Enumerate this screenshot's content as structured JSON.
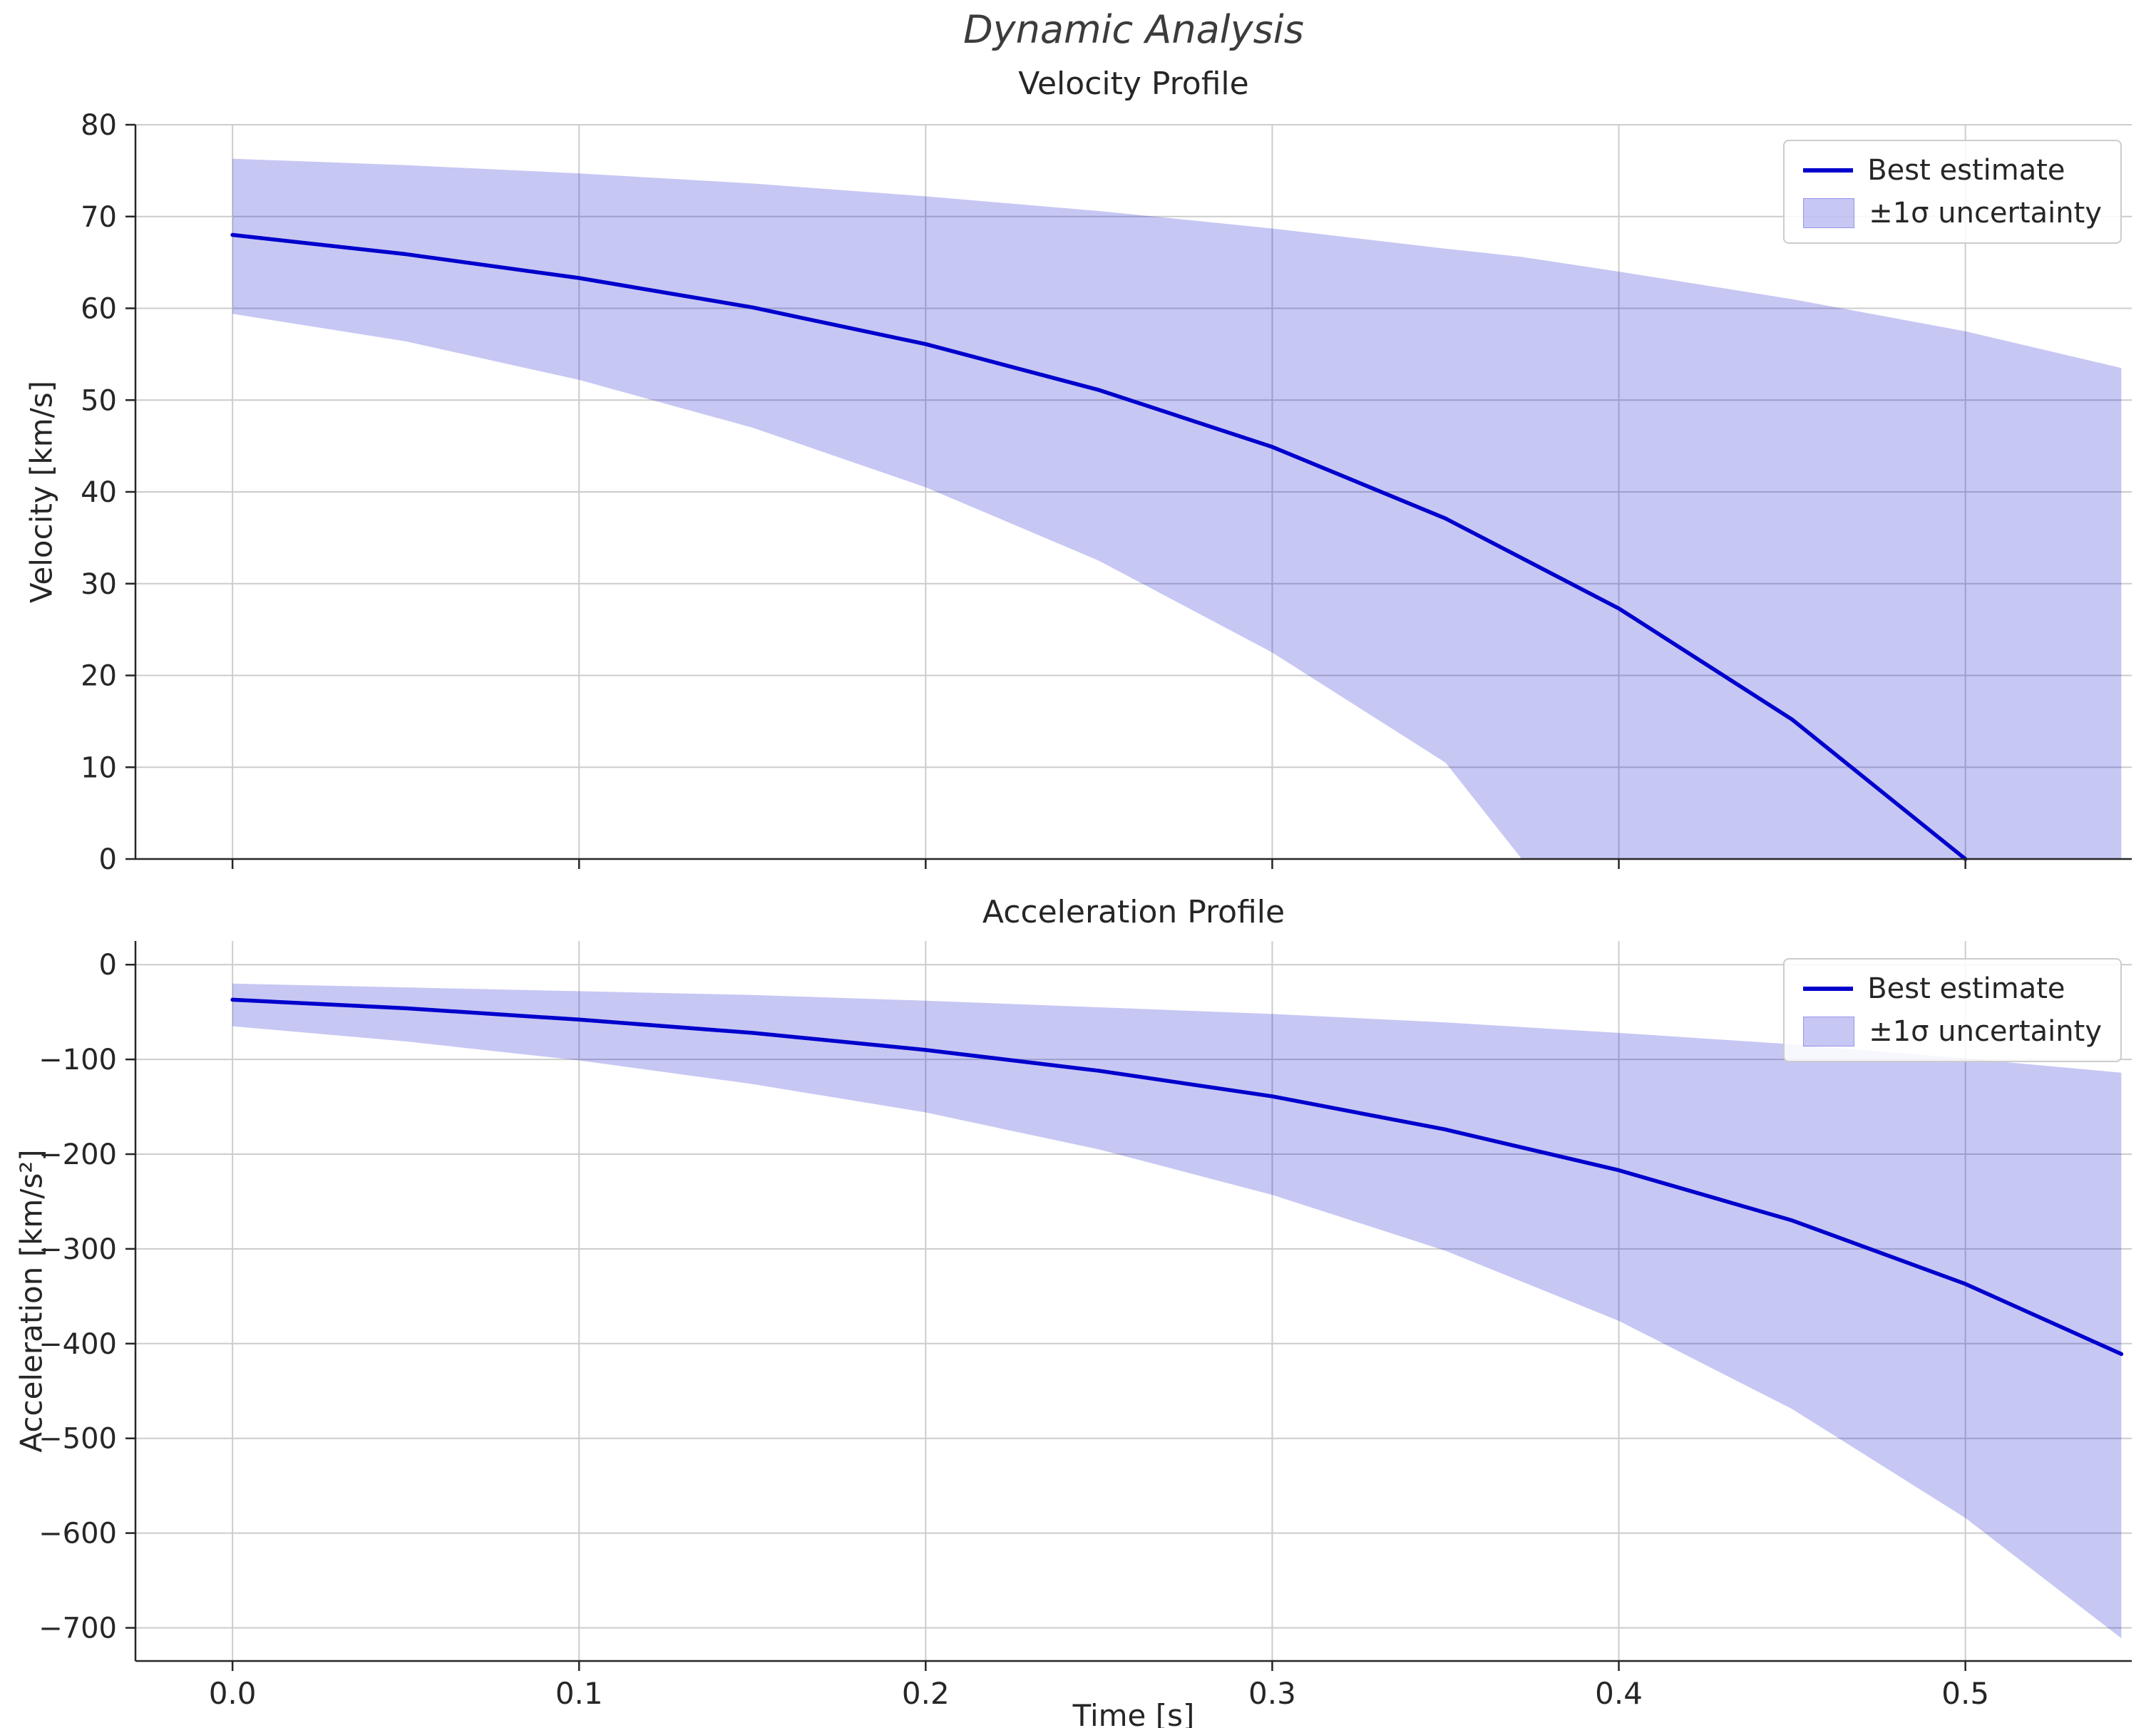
{
  "figure": {
    "title": "Dynamic Analysis"
  },
  "chart_data": [
    {
      "type": "line",
      "title": "Velocity Profile",
      "xlabel": "",
      "ylabel": "Velocity [km/s]",
      "xlim": [
        -0.028,
        0.548
      ],
      "ylim": [
        0,
        80
      ],
      "grid": true,
      "legend_position": "upper right",
      "xticks": {
        "values": [
          0.0,
          0.1,
          0.2,
          0.3,
          0.4,
          0.5
        ],
        "labels": [
          "0.0",
          "0.1",
          "0.2",
          "0.3",
          "0.4",
          "0.5"
        ],
        "show_labels": false
      },
      "yticks": {
        "values": [
          0,
          10,
          20,
          30,
          40,
          50,
          60,
          70,
          80
        ],
        "labels": [
          "0",
          "10",
          "20",
          "30",
          "40",
          "50",
          "60",
          "70",
          "80"
        ]
      },
      "series": [
        {
          "name": "Best estimate",
          "color": "#0000CD",
          "x": [
            0,
            0.05,
            0.1,
            0.15,
            0.2,
            0.25,
            0.3,
            0.35,
            0.4,
            0.45,
            0.5
          ],
          "y": [
            68.0,
            65.9,
            63.3,
            60.1,
            56.1,
            51.1,
            44.9,
            37.1,
            27.3,
            15.2,
            0.0
          ]
        }
      ],
      "band": {
        "name": "±1σ uncertainty",
        "color": "#0000CD",
        "opacity": 0.22,
        "x": [
          0,
          0.05,
          0.1,
          0.15,
          0.2,
          0.25,
          0.3,
          0.35,
          0.372,
          0.4,
          0.45,
          0.5,
          0.545
        ],
        "upper": [
          76.3,
          75.6,
          74.7,
          73.6,
          72.2,
          70.6,
          68.7,
          66.5,
          65.6,
          64.0,
          61.0,
          57.5,
          53.5
        ],
        "lower": [
          59.4,
          56.4,
          52.2,
          47.0,
          40.5,
          32.5,
          22.5,
          10.5,
          0,
          0,
          0,
          0,
          0
        ]
      }
    },
    {
      "type": "line",
      "title": "Acceleration Profile",
      "xlabel": "Time [s]",
      "ylabel": "Acceleration [km/s²]",
      "xlim": [
        -0.028,
        0.548
      ],
      "ylim": [
        -735,
        25
      ],
      "grid": true,
      "legend_position": "upper right",
      "xticks": {
        "values": [
          0.0,
          0.1,
          0.2,
          0.3,
          0.4,
          0.5
        ],
        "labels": [
          "0.0",
          "0.1",
          "0.2",
          "0.3",
          "0.4",
          "0.5"
        ],
        "show_labels": true
      },
      "yticks": {
        "values": [
          0,
          -100,
          -200,
          -300,
          -400,
          -500,
          -600,
          -700
        ],
        "labels": [
          "0",
          "−100",
          "−200",
          "−300",
          "−400",
          "−500",
          "−600",
          "−700"
        ]
      },
      "series": [
        {
          "name": "Best estimate",
          "color": "#0000CD",
          "x": [
            0,
            0.05,
            0.1,
            0.15,
            0.2,
            0.25,
            0.3,
            0.35,
            0.4,
            0.45,
            0.5,
            0.545
          ],
          "y": [
            -37,
            -46,
            -58,
            -72,
            -90,
            -112,
            -139,
            -174,
            -217,
            -270,
            -337,
            -411
          ]
        }
      ],
      "band": {
        "name": "±1σ uncertainty",
        "color": "#0000CD",
        "opacity": 0.22,
        "x": [
          0,
          0.05,
          0.1,
          0.15,
          0.2,
          0.25,
          0.3,
          0.35,
          0.4,
          0.45,
          0.5,
          0.545
        ],
        "upper": [
          -20,
          -24,
          -28,
          -32,
          -38,
          -45,
          -52,
          -61,
          -72,
          -84,
          -99,
          -114
        ],
        "lower": [
          -65,
          -81,
          -101,
          -126,
          -156,
          -195,
          -243,
          -302,
          -376,
          -469,
          -584,
          -711
        ]
      }
    }
  ],
  "style": {
    "line_color": "#0000CD",
    "band_fill": "rgba(0,0,205,0.22)",
    "grid_color": "#cccccc",
    "spine_color": "#262626",
    "text_color": "#262626"
  }
}
